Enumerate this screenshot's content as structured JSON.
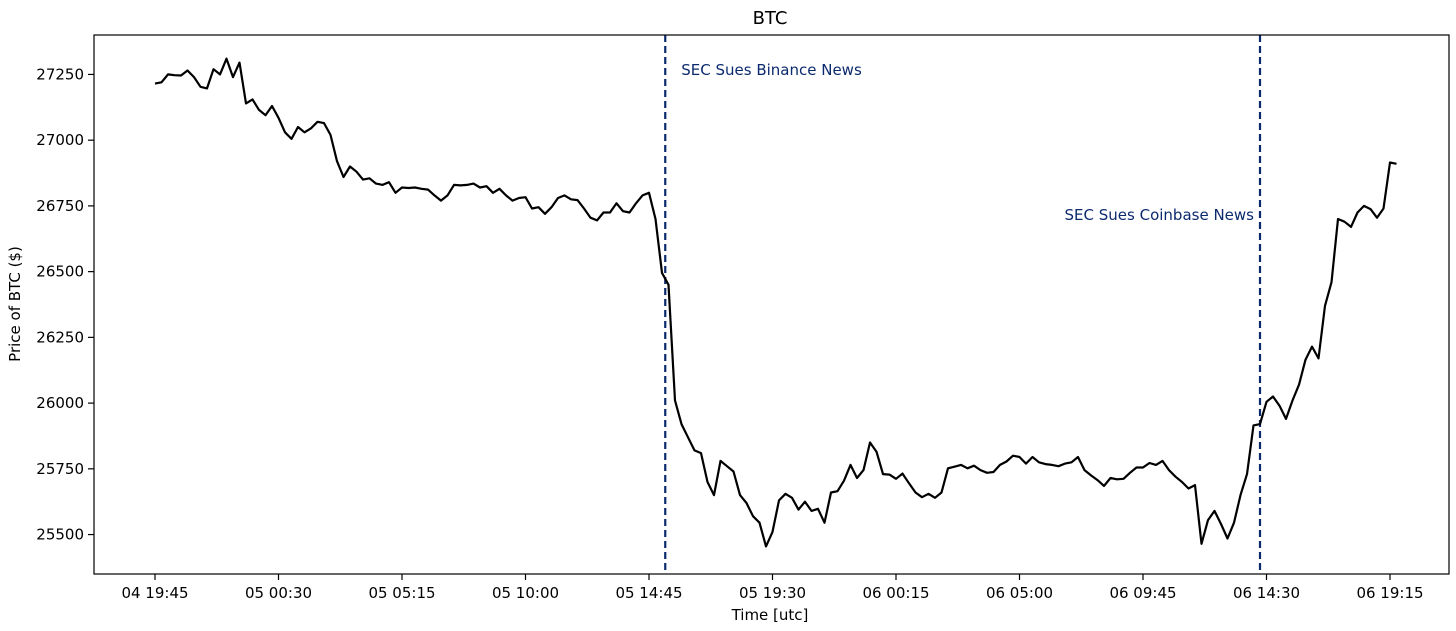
{
  "chart_data": {
    "type": "line",
    "title": "BTC",
    "xlabel": "Time [utc]",
    "ylabel": "Price of BTC ($)",
    "ylim": [
      25350,
      27400
    ],
    "yticks": [
      25500,
      25750,
      26000,
      26250,
      26500,
      26750,
      27000,
      27250
    ],
    "xtick_labels": [
      "04 19:45",
      "05 00:30",
      "05 05:15",
      "05 10:00",
      "05 14:45",
      "05 19:30",
      "06 00:15",
      "06 05:00",
      "06 09:45",
      "06 14:30",
      "06 19:15"
    ],
    "x_unit": "15-minute intervals from 04 19:45 (tick every 19 intervals)",
    "grid": false,
    "line_color": "#000000",
    "annotation_color": "#0b2a6e",
    "series": [
      {
        "name": "BTC",
        "values": [
          27215,
          27220,
          27250,
          27247,
          27246,
          27265,
          27240,
          27203,
          27197,
          27270,
          27250,
          27310,
          27240,
          27295,
          27140,
          27155,
          27115,
          27095,
          27130,
          27085,
          27030,
          27005,
          27050,
          27030,
          27045,
          27070,
          27065,
          27020,
          26920,
          26860,
          26900,
          26880,
          26850,
          26855,
          26835,
          26830,
          26840,
          26800,
          26820,
          26818,
          26820,
          26815,
          26812,
          26790,
          26770,
          26790,
          26830,
          26828,
          26830,
          26835,
          26820,
          26825,
          26800,
          26815,
          26790,
          26770,
          26780,
          26783,
          26740,
          26745,
          26720,
          26745,
          26780,
          26790,
          26775,
          26772,
          26740,
          26705,
          26695,
          26725,
          26725,
          26760,
          26730,
          26725,
          26760,
          26790,
          26800,
          26700,
          26495,
          26450,
          26010,
          25920,
          25870,
          25820,
          25810,
          25700,
          25650,
          25780,
          25760,
          25740,
          25650,
          25620,
          25570,
          25545,
          25455,
          25510,
          25630,
          25655,
          25640,
          25595,
          25625,
          25590,
          25598,
          25545,
          25660,
          25665,
          25705,
          25765,
          25715,
          25745,
          25850,
          25815,
          25730,
          25728,
          25712,
          25732,
          25695,
          25660,
          25642,
          25655,
          25640,
          25660,
          25752,
          25758,
          25765,
          25752,
          25762,
          25745,
          25735,
          25738,
          25765,
          25778,
          25800,
          25795,
          25770,
          25795,
          25775,
          25768,
          25765,
          25760,
          25770,
          25775,
          25795,
          25745,
          25725,
          25707,
          25685,
          25715,
          25710,
          25712,
          25735,
          25755,
          25755,
          25772,
          25765,
          25780,
          25745,
          25720,
          25700,
          25675,
          25688,
          25465,
          25555,
          25590,
          25540,
          25485,
          25545,
          25650,
          25730,
          25915,
          25920,
          26005,
          26025,
          25990,
          25940,
          26010,
          26070,
          26165,
          26215,
          26170,
          26370,
          26460,
          26700,
          26690,
          26670,
          26725,
          26750,
          26738,
          26705,
          26740,
          26915,
          26910
        ]
      }
    ],
    "annotations": [
      {
        "label": "SEC Sues Binance News",
        "x_index": 78.5
      },
      {
        "label": "SEC Sues Coinbase News",
        "x_index": 170
      }
    ]
  }
}
